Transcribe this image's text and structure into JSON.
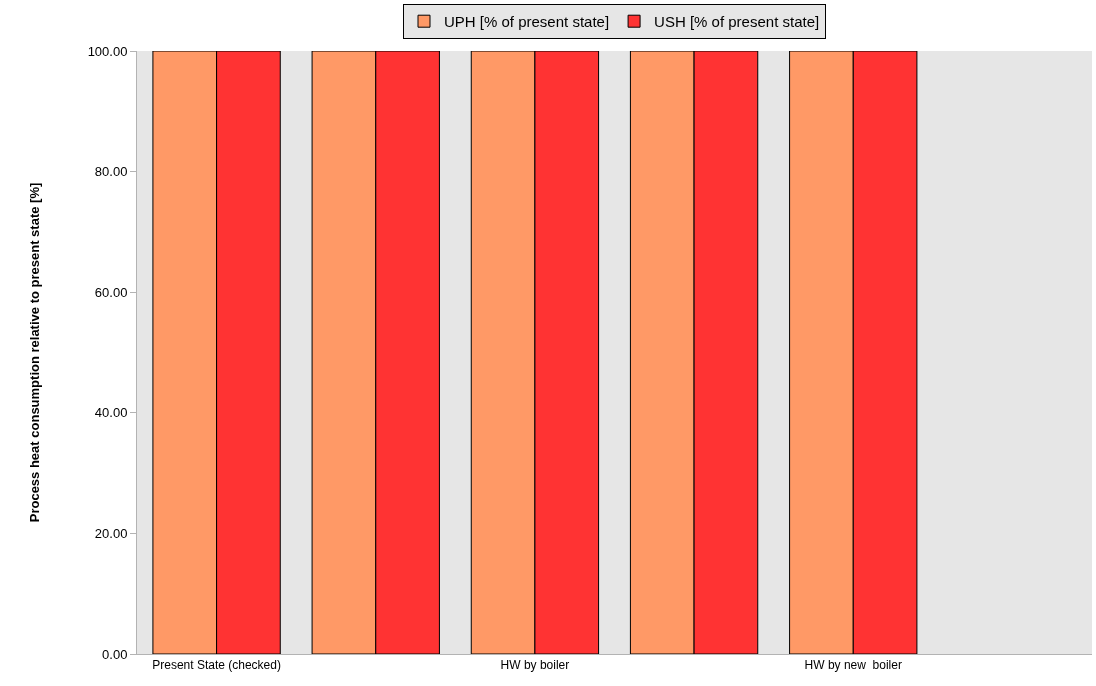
{
  "chart_data": {
    "type": "bar",
    "ylabel": "Process heat consumption relative to present state [%]",
    "categories": [
      "Present State (checked)",
      null,
      "HW by boiler",
      null,
      "HW by new  boiler",
      null
    ],
    "series": [
      {
        "name": "UPH [% of present state]",
        "color": "#ff9966",
        "values": [
          100,
          100,
          100,
          100,
          100,
          null
        ]
      },
      {
        "name": "USH [% of present state]",
        "color": "#ff3333",
        "values": [
          100,
          100,
          100,
          100,
          100,
          null
        ]
      }
    ],
    "ylim": [
      0,
      100
    ],
    "yticks": [
      {
        "value": 0,
        "label": "0.00"
      },
      {
        "value": 20,
        "label": "20.00"
      },
      {
        "value": 40,
        "label": "40.00"
      },
      {
        "value": 60,
        "label": "60.00"
      },
      {
        "value": 80,
        "label": "80.00"
      },
      {
        "value": 100,
        "label": "100.00"
      }
    ],
    "grid": false,
    "legend": "top"
  }
}
